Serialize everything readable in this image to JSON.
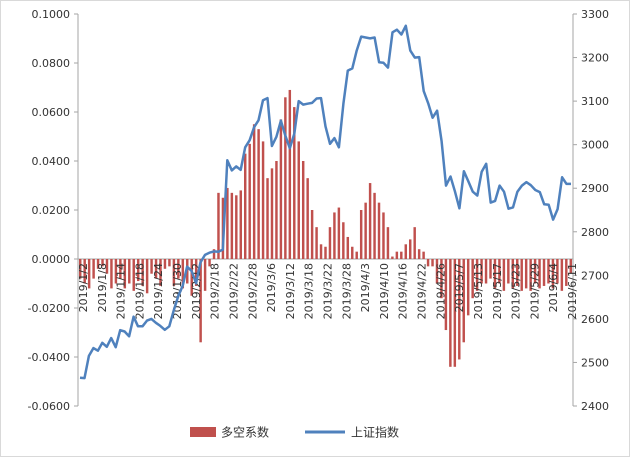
{
  "chart_data": {
    "type": "bar+line",
    "left_axis": {
      "range": [
        -0.06,
        0.1
      ],
      "ticks": [
        "0.1000",
        "0.0800",
        "0.0600",
        "0.0400",
        "0.0200",
        "0.0000",
        "-0.0200",
        "-0.0400",
        "-0.0600"
      ],
      "tick_values": [
        0.1,
        0.08,
        0.06,
        0.04,
        0.02,
        0.0,
        -0.02,
        -0.04,
        -0.06
      ]
    },
    "right_axis": {
      "range": [
        2400,
        3300
      ],
      "ticks": [
        "3300",
        "3200",
        "3100",
        "3000",
        "2900",
        "2800",
        "2700",
        "2600",
        "2500",
        "2400"
      ],
      "tick_values": [
        3300,
        3200,
        3100,
        3000,
        2900,
        2800,
        2700,
        2600,
        2500,
        2400
      ]
    },
    "x_tick_labels": [
      "2019/1/2",
      "2019/1/8",
      "2019/1/14",
      "2019/1/18",
      "2019/1/24",
      "2019/1/30",
      "2019/2/12",
      "2019/2/18",
      "2019/2/22",
      "2019/2/28",
      "2019/3/6",
      "2019/3/12",
      "2019/3/18",
      "2019/3/22",
      "2019/3/28",
      "2019/4/3",
      "2019/4/10",
      "2019/4/16",
      "2019/4/22",
      "2019/4/26",
      "2019/5/7",
      "2019/5/13",
      "2019/5/17",
      "2019/5/23",
      "2019/5/29",
      "2019/6/4",
      "2019/6/11"
    ],
    "series": [
      {
        "name": "多空系数",
        "kind": "bar",
        "axis": "left",
        "color": "#c0504d",
        "values": [
          -0.008,
          -0.01,
          -0.012,
          -0.008,
          -0.004,
          -0.003,
          -0.006,
          -0.012,
          -0.01,
          -0.008,
          -0.012,
          -0.01,
          -0.013,
          -0.009,
          -0.011,
          -0.014,
          -0.006,
          -0.008,
          -0.011,
          -0.004,
          -0.003,
          -0.011,
          -0.008,
          -0.012,
          -0.01,
          -0.015,
          -0.011,
          -0.034,
          -0.013,
          -0.003,
          0.004,
          0.027,
          0.025,
          0.029,
          0.027,
          0.026,
          0.028,
          0.043,
          0.047,
          0.055,
          0.053,
          0.048,
          0.033,
          0.037,
          0.04,
          0.057,
          0.066,
          0.069,
          0.062,
          0.048,
          0.04,
          0.033,
          0.02,
          0.013,
          0.006,
          0.005,
          0.013,
          0.019,
          0.021,
          0.015,
          0.009,
          0.005,
          0.003,
          0.02,
          0.023,
          0.031,
          0.027,
          0.023,
          0.019,
          0.013,
          0.001,
          0.003,
          0.003,
          0.006,
          0.008,
          0.013,
          0.004,
          0.003,
          -0.003,
          -0.003,
          -0.01,
          -0.016,
          -0.029,
          -0.044,
          -0.044,
          -0.041,
          -0.034,
          -0.023,
          -0.016,
          -0.013,
          -0.01,
          -0.01,
          -0.008,
          -0.012,
          -0.01,
          -0.013,
          -0.01,
          -0.012,
          -0.011,
          -0.013,
          -0.012,
          -0.013,
          -0.01,
          -0.012,
          -0.011,
          -0.01,
          -0.012,
          -0.01,
          -0.013,
          -0.011,
          -0.006
        ]
      },
      {
        "name": "上证指数",
        "kind": "line",
        "axis": "right",
        "color": "#4f81bd",
        "values": [
          2465,
          2464,
          2515,
          2533,
          2527,
          2545,
          2536,
          2556,
          2535,
          2574,
          2571,
          2560,
          2605,
          2583,
          2583,
          2596,
          2600,
          2591,
          2584,
          2575,
          2583,
          2619,
          2652,
          2676,
          2720,
          2710,
          2682,
          2730,
          2747,
          2752,
          2755,
          2754,
          2759,
          2964,
          2941,
          2950,
          2942,
          2994,
          3010,
          3040,
          3056,
          3102,
          3107,
          2997,
          3018,
          3055,
          3021,
          2992,
          3025,
          3100,
          3092,
          3094,
          3096,
          3106,
          3107,
          3042,
          3002,
          3015,
          2994,
          3094,
          3170,
          3175,
          3216,
          3248,
          3246,
          3244,
          3246,
          3189,
          3188,
          3177,
          3258,
          3264,
          3253,
          3273,
          3216,
          3200,
          3201,
          3123,
          3095,
          3062,
          3078,
          3008,
          2906,
          2927,
          2893,
          2854,
          2939,
          2916,
          2892,
          2883,
          2938,
          2956,
          2867,
          2871,
          2906,
          2892,
          2853,
          2856,
          2892,
          2906,
          2914,
          2907,
          2896,
          2891,
          2863,
          2862,
          2828,
          2852,
          2925,
          2910,
          2910
        ]
      }
    ],
    "legend": {
      "position": "bottom",
      "entries": [
        "多空系数",
        "上证指数"
      ]
    }
  }
}
